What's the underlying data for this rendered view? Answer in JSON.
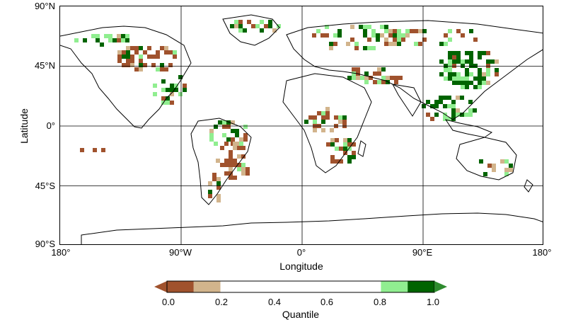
{
  "map": {
    "lat_ticks": [
      "90°N",
      "45°N",
      "0°",
      "45°S",
      "90°S"
    ],
    "lon_ticks": [
      "180°",
      "90°W",
      "0°",
      "90°E",
      "180°"
    ],
    "ylabel": "Latitude",
    "xlabel": "Longitude",
    "grid": true,
    "lat_range": [
      -90,
      90
    ],
    "lon_range": [
      -180,
      180
    ]
  },
  "colorbar": {
    "title": "Quantile",
    "tick_labels": [
      "0.0",
      "0.2",
      "0.4",
      "0.6",
      "0.8",
      "1.0"
    ],
    "bins": [
      {
        "from": 0.0,
        "to": 0.1,
        "color": "#a0522d"
      },
      {
        "from": 0.1,
        "to": 0.2,
        "color": "#d2b48c"
      },
      {
        "from": 0.2,
        "to": 0.8,
        "color": "#ffffff"
      },
      {
        "from": 0.8,
        "to": 0.9,
        "color": "#90ee90"
      },
      {
        "from": 0.9,
        "to": 1.0,
        "color": "#006400"
      }
    ],
    "low_arrow_color": "#a0522d",
    "high_arrow_color": "#2e8b2e"
  },
  "colors": {
    "dry_extreme": "#a0522d",
    "dry": "#d2b48c",
    "wet": "#90ee90",
    "wet_extreme": "#006400"
  }
}
